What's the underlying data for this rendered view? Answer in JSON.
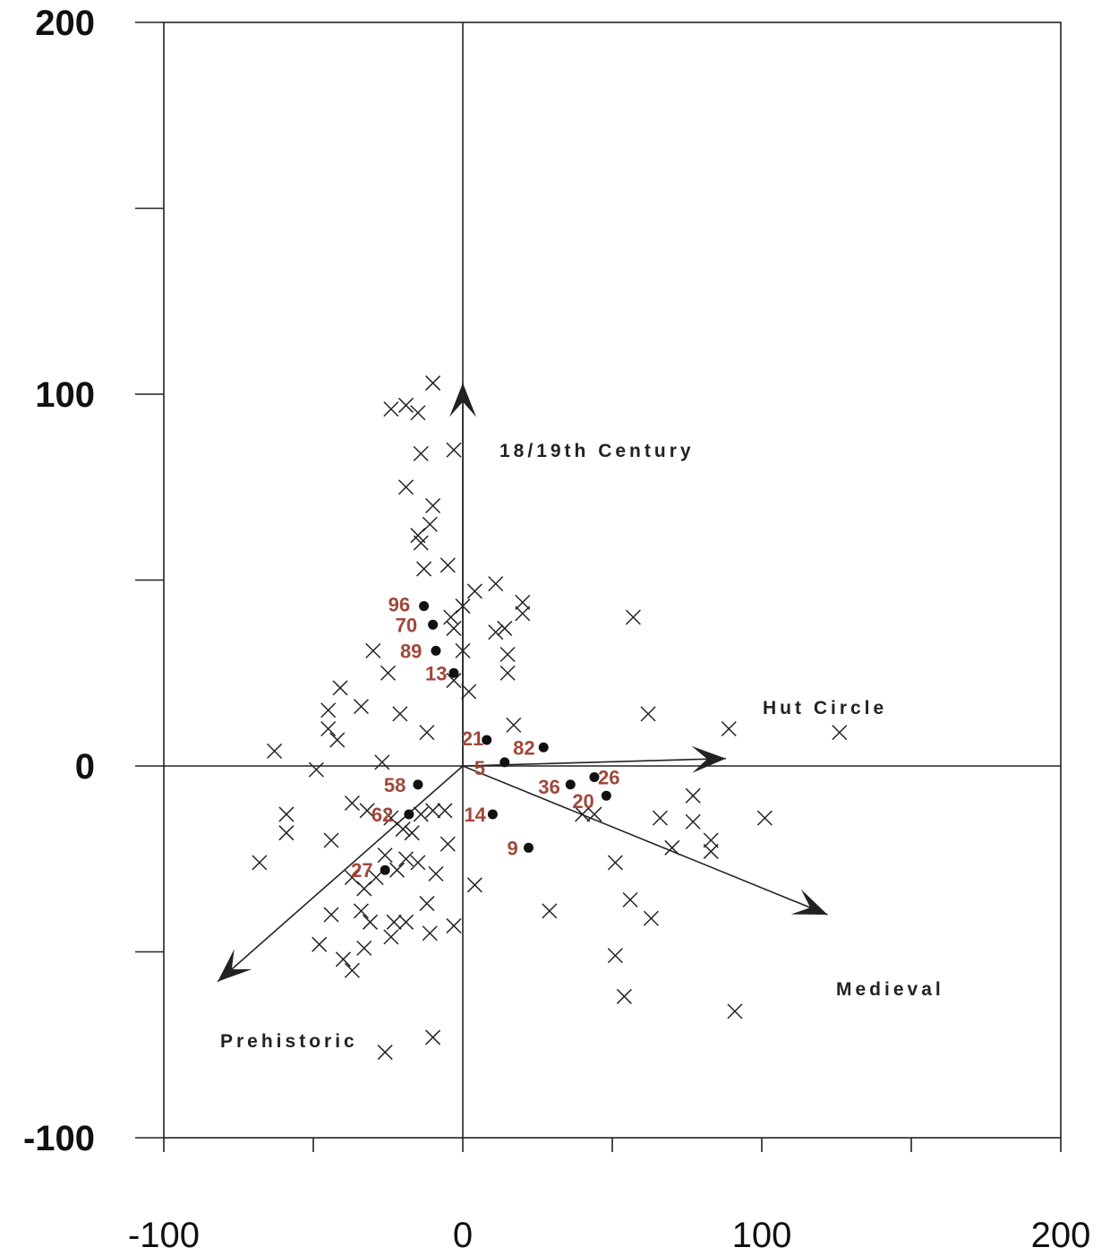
{
  "chart_data": {
    "type": "scatter",
    "title": "",
    "xlabel": "",
    "ylabel": "",
    "xlim": [
      -100,
      200
    ],
    "ylim": [
      -100,
      200
    ],
    "x_ticks": [
      -100,
      -50,
      0,
      50,
      100,
      150,
      200
    ],
    "y_ticks": [
      -100,
      -50,
      0,
      50,
      100,
      150,
      200
    ],
    "x_tick_labels": [
      {
        "value": -100,
        "text": "-100"
      },
      {
        "value": 0,
        "text": "0"
      },
      {
        "value": 100,
        "text": "100"
      },
      {
        "value": 200,
        "text": "200"
      }
    ],
    "y_tick_labels": [
      {
        "value": 200,
        "text": "200"
      },
      {
        "value": 100,
        "text": "100"
      },
      {
        "value": 0,
        "text": "0"
      },
      {
        "value": -100,
        "text": "-100"
      }
    ],
    "grid": false,
    "vectors": [
      {
        "label": "18/19th Century",
        "x": 0,
        "y": 103
      },
      {
        "label": "Hut Circle",
        "x": 88,
        "y": 2
      },
      {
        "label": "Medieval",
        "x": 122,
        "y": -40
      },
      {
        "label": "Prehistoric",
        "x": -82,
        "y": -58
      }
    ],
    "labeled_points": [
      {
        "label": "96",
        "x": -13,
        "y": 43
      },
      {
        "label": "70",
        "x": -10,
        "y": 38
      },
      {
        "label": "89",
        "x": -9,
        "y": 31
      },
      {
        "label": "13",
        "x": -3,
        "y": 25
      },
      {
        "label": "21",
        "x": 8,
        "y": 7
      },
      {
        "label": "5",
        "x": 14,
        "y": 1
      },
      {
        "label": "82",
        "x": 27,
        "y": 5
      },
      {
        "label": "36",
        "x": 36,
        "y": -5
      },
      {
        "label": "26",
        "x": 44,
        "y": -3
      },
      {
        "label": "20",
        "x": 48,
        "y": -8
      },
      {
        "label": "58",
        "x": -15,
        "y": -5
      },
      {
        "label": "62",
        "x": -18,
        "y": -13
      },
      {
        "label": "14",
        "x": 10,
        "y": -13
      },
      {
        "label": "9",
        "x": 22,
        "y": -22
      },
      {
        "label": "27",
        "x": -26,
        "y": -28
      }
    ],
    "crosses": [
      [
        -10,
        103
      ],
      [
        -24,
        96
      ],
      [
        -19,
        97
      ],
      [
        -15,
        95
      ],
      [
        -14,
        84
      ],
      [
        -3,
        85
      ],
      [
        -19,
        75
      ],
      [
        -10,
        70
      ],
      [
        -11,
        65
      ],
      [
        -15,
        62
      ],
      [
        -14,
        60
      ],
      [
        -13,
        53
      ],
      [
        -5,
        54
      ],
      [
        4,
        47
      ],
      [
        11,
        49
      ],
      [
        20,
        44
      ],
      [
        20,
        41
      ],
      [
        -4,
        40
      ],
      [
        0,
        43
      ],
      [
        -3,
        37
      ],
      [
        14,
        37
      ],
      [
        11,
        36
      ],
      [
        -30,
        31
      ],
      [
        0,
        31
      ],
      [
        15,
        30
      ],
      [
        15,
        25
      ],
      [
        -25,
        25
      ],
      [
        -3,
        23
      ],
      [
        2,
        20
      ],
      [
        -41,
        21
      ],
      [
        -34,
        16
      ],
      [
        -45,
        15
      ],
      [
        -21,
        14
      ],
      [
        17,
        11
      ],
      [
        -12,
        9
      ],
      [
        -45,
        10
      ],
      [
        -42,
        7
      ],
      [
        -63,
        4
      ],
      [
        -27,
        1
      ],
      [
        -49,
        -1
      ],
      [
        -37,
        -10
      ],
      [
        -32,
        -12
      ],
      [
        -24,
        -14
      ],
      [
        -14,
        -13
      ],
      [
        -10,
        -12
      ],
      [
        -6,
        -12
      ],
      [
        -59,
        -13
      ],
      [
        -59,
        -18
      ],
      [
        -20,
        -17
      ],
      [
        -17,
        -18
      ],
      [
        -44,
        -20
      ],
      [
        -5,
        -21
      ],
      [
        -26,
        -24
      ],
      [
        -19,
        -25
      ],
      [
        -22,
        -28
      ],
      [
        -29,
        -30
      ],
      [
        -15,
        -26
      ],
      [
        -9,
        -29
      ],
      [
        -68,
        -26
      ],
      [
        -33,
        -33
      ],
      [
        -37,
        -30
      ],
      [
        4,
        -32
      ],
      [
        -34,
        -39
      ],
      [
        -44,
        -40
      ],
      [
        -12,
        -37
      ],
      [
        -31,
        -42
      ],
      [
        -23,
        -42
      ],
      [
        -19,
        -42
      ],
      [
        -11,
        -45
      ],
      [
        -3,
        -43
      ],
      [
        -24,
        -46
      ],
      [
        -33,
        -49
      ],
      [
        -48,
        -48
      ],
      [
        -40,
        -52
      ],
      [
        -37,
        -55
      ],
      [
        -10,
        -73
      ],
      [
        -26,
        -77
      ],
      [
        29,
        -39
      ],
      [
        51,
        -26
      ],
      [
        56,
        -36
      ],
      [
        63,
        -41
      ],
      [
        51,
        -51
      ],
      [
        54,
        -62
      ],
      [
        57,
        40
      ],
      [
        62,
        14
      ],
      [
        89,
        10
      ],
      [
        126,
        9
      ],
      [
        40,
        -13
      ],
      [
        44,
        -13
      ],
      [
        66,
        -14
      ],
      [
        77,
        -8
      ],
      [
        77,
        -15
      ],
      [
        70,
        -22
      ],
      [
        83,
        -20
      ],
      [
        83,
        -23
      ],
      [
        101,
        -14
      ],
      [
        91,
        -66
      ]
    ]
  }
}
